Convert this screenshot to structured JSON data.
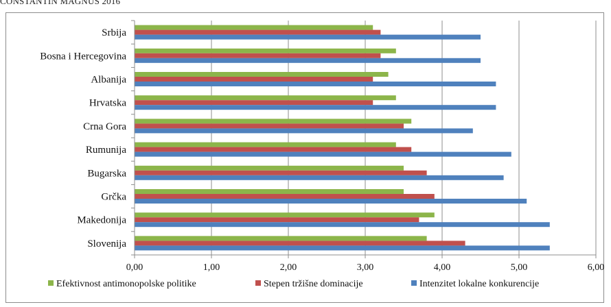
{
  "header": {
    "text": "CONSTANTIN MAGNUS 2016"
  },
  "chart_data": {
    "type": "bar",
    "orientation": "horizontal",
    "categories": [
      "Srbija",
      "Bosna i Hercegovina",
      "Albanija",
      "Hrvatska",
      "Crna Gora",
      "Rumunija",
      "Bugarska",
      "Grčka",
      "Makedonija",
      "Slovenija"
    ],
    "series": [
      {
        "name": "Efektivnost antimonopolske politike",
        "color": "#8cb54a",
        "values": [
          3.1,
          3.4,
          3.3,
          3.4,
          3.6,
          3.4,
          3.5,
          3.5,
          3.9,
          3.8
        ]
      },
      {
        "name": "Stepen tržišne dominacije",
        "color": "#c0504d",
        "values": [
          3.2,
          3.2,
          3.1,
          3.1,
          3.5,
          3.6,
          3.8,
          3.9,
          3.7,
          4.3
        ]
      },
      {
        "name": "Intenzitet lokalne konkurencije",
        "color": "#4f81bd",
        "values": [
          4.5,
          4.5,
          4.7,
          4.7,
          4.4,
          4.9,
          4.8,
          5.1,
          5.4,
          5.4
        ]
      }
    ],
    "xlim": [
      0,
      6
    ],
    "xticks": [
      "0,00",
      "1,00",
      "2,00",
      "3,00",
      "4,00",
      "5,00",
      "6,00"
    ],
    "grid": true,
    "legend_position": "bottom"
  }
}
